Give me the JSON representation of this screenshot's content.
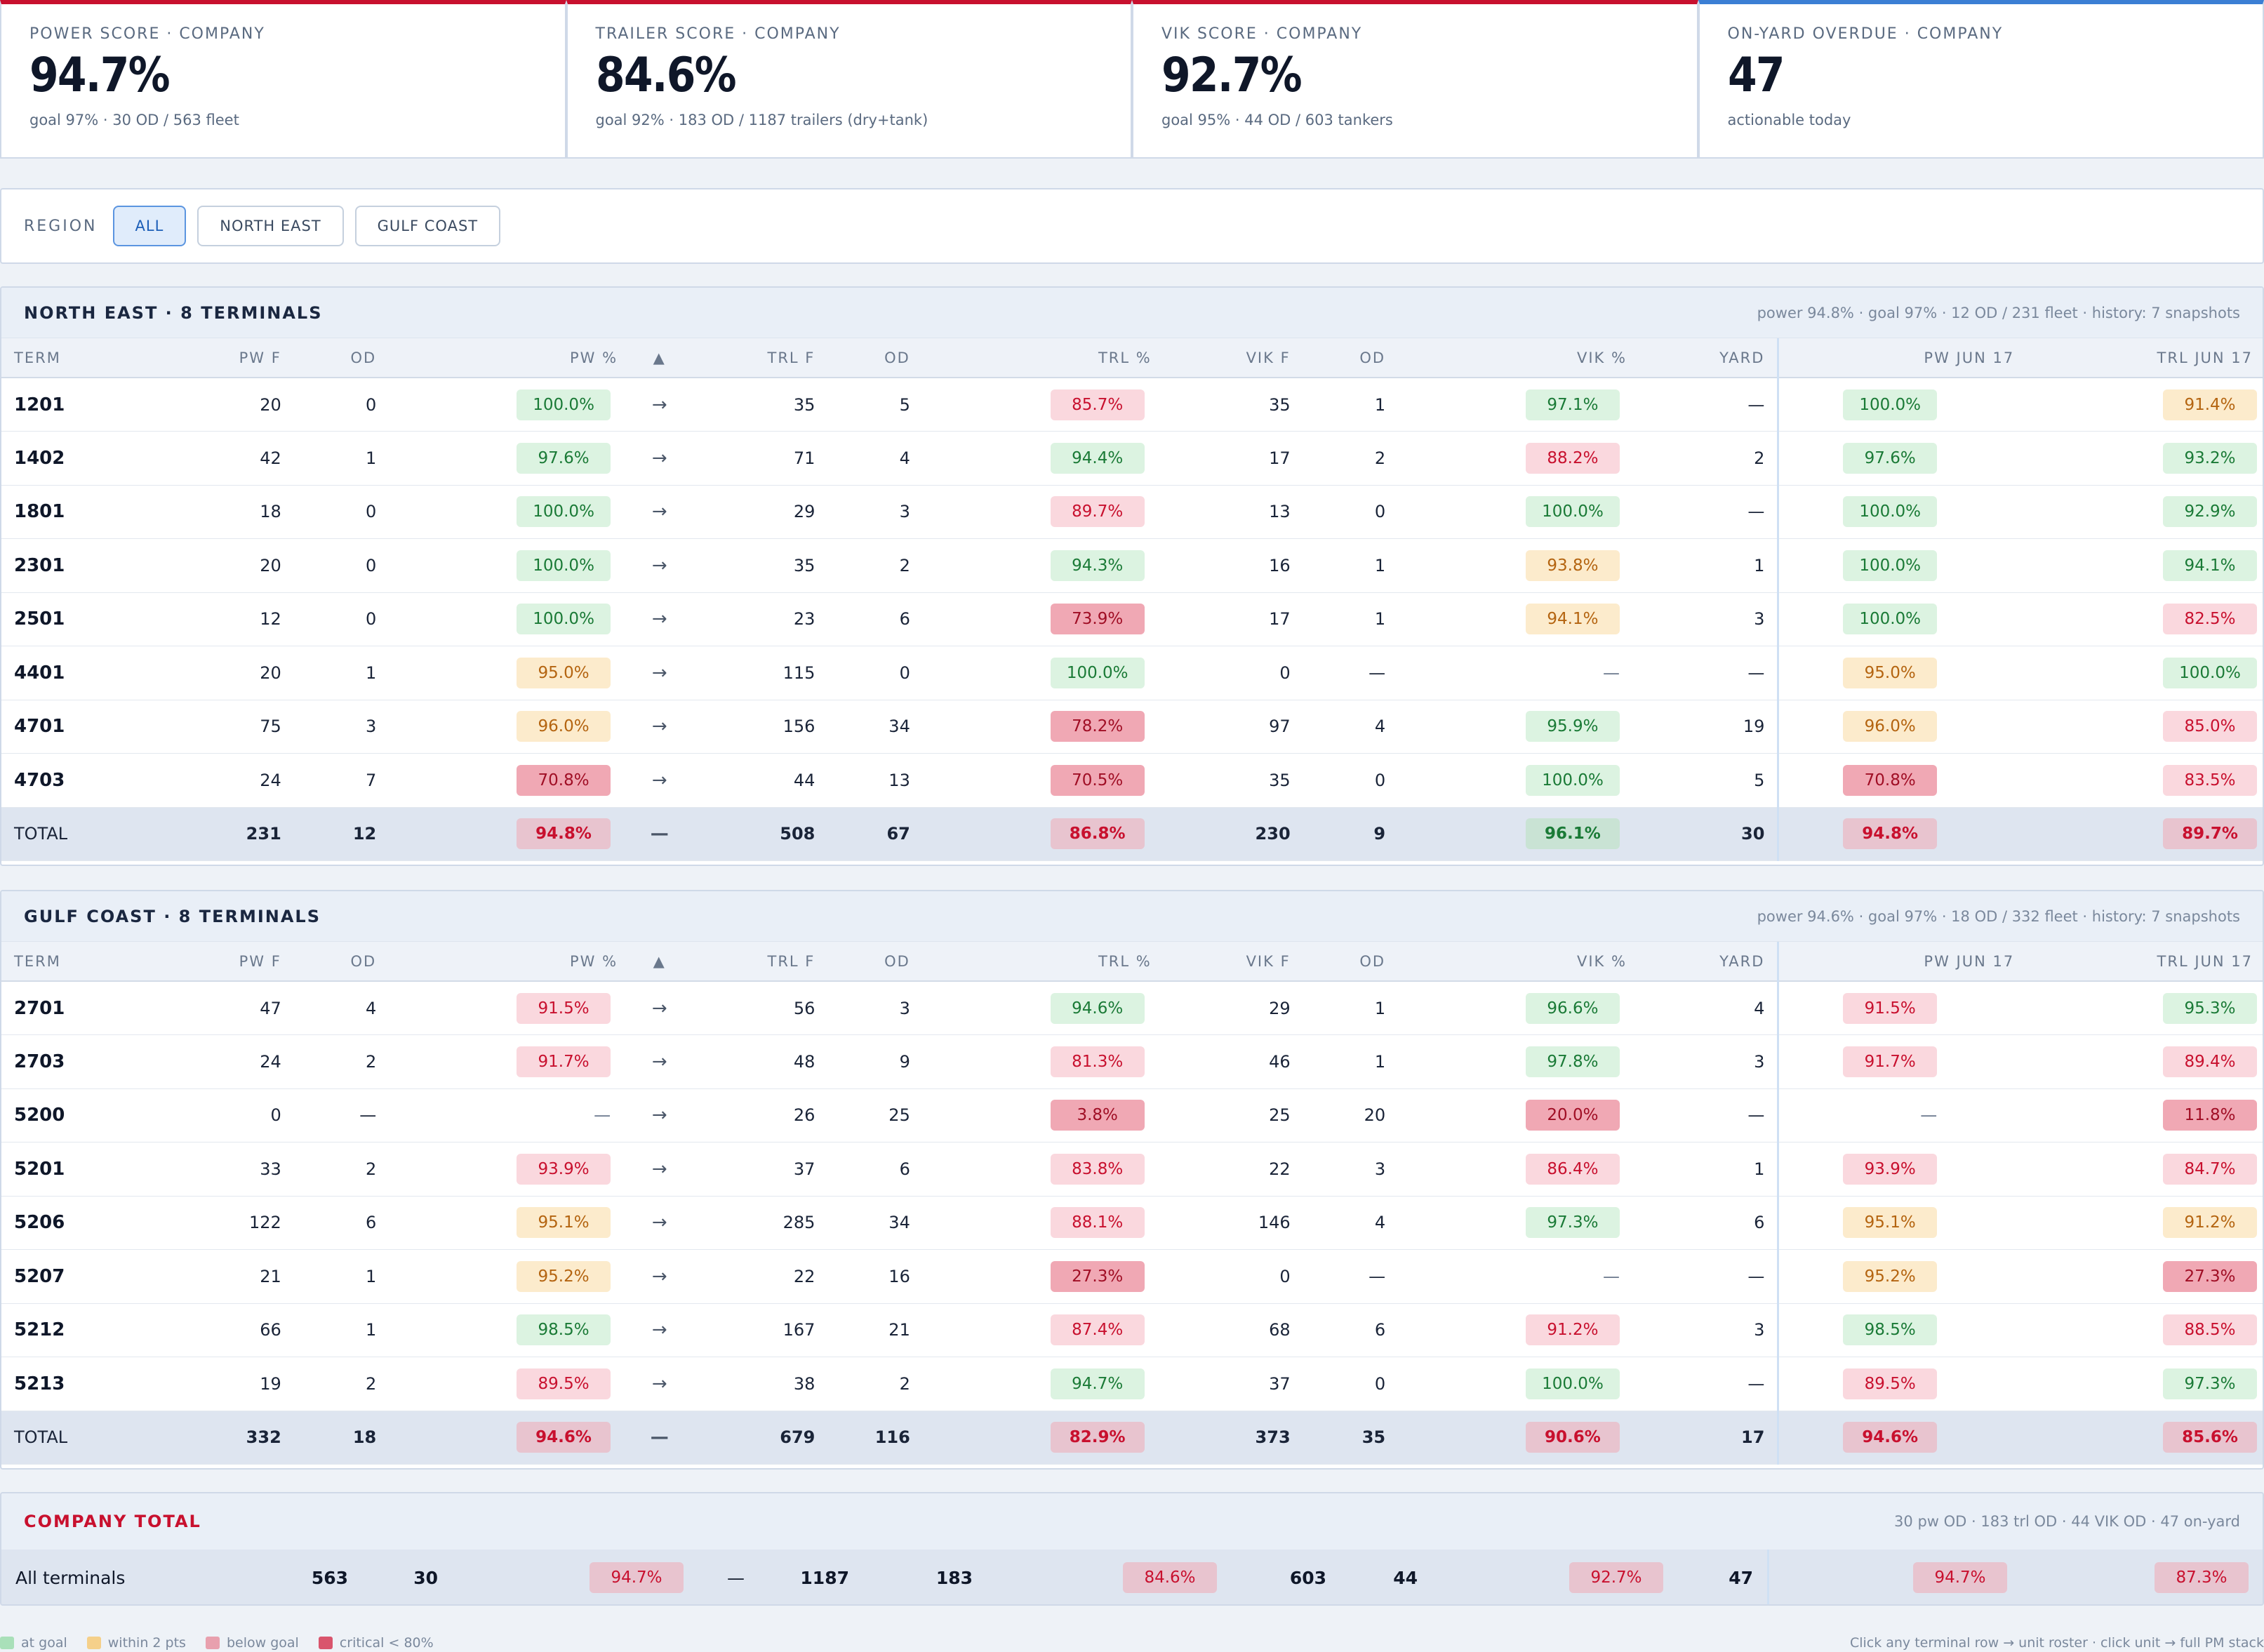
{
  "kpis": [
    {
      "label": "POWER SCORE · COMPANY",
      "value": "94.7%",
      "sub": "goal 97% · 30 OD / 563 fleet",
      "accent": "#c8102e"
    },
    {
      "label": "TRAILER SCORE · COMPANY",
      "value": "84.6%",
      "sub": "goal 92% · 183 OD / 1187 trailers (dry+tank)",
      "accent": "#c8102e"
    },
    {
      "label": "VIK SCORE · COMPANY",
      "value": "92.7%",
      "sub": "goal 95% · 44 OD / 603 tankers",
      "accent": "#c8102e"
    },
    {
      "label": "ON-YARD OVERDUE · COMPANY",
      "value": "47",
      "sub": "actionable today",
      "accent": "#3b7fd4"
    }
  ],
  "filter": {
    "label": "REGION",
    "options": [
      "ALL",
      "NORTH EAST",
      "GULF COAST"
    ],
    "selected": "ALL"
  },
  "columns": [
    "TERM",
    "PW F",
    "OD",
    "PW %",
    "▲",
    "TRL F",
    "OD",
    "TRL %",
    "VIK F",
    "OD",
    "VIK %",
    "YARD",
    "PW JUN 17",
    "TRL JUN 17"
  ],
  "sections": [
    {
      "title": "NORTH EAST · 8 TERMINALS",
      "meta": "power 94.8% · goal 97% · 12 OD / 231 fleet · history: 7 snapshots",
      "rows": [
        {
          "term": "1201",
          "pwf": "20",
          "pwod": "0",
          "pw": "100.0%",
          "pwc": "good",
          "trend": "→",
          "trlf": "35",
          "trlod": "5",
          "trl": "85.7%",
          "trlc": "below",
          "vikf": "35",
          "vikod": "1",
          "vik": "97.1%",
          "vikc": "good",
          "yard": "—",
          "hpw": "100.0%",
          "hpwc": "good",
          "htrl": "91.4%",
          "htrlc": "warn"
        },
        {
          "term": "1402",
          "pwf": "42",
          "pwod": "1",
          "pw": "97.6%",
          "pwc": "good",
          "trend": "→",
          "trlf": "71",
          "trlod": "4",
          "trl": "94.4%",
          "trlc": "good",
          "vikf": "17",
          "vikod": "2",
          "vik": "88.2%",
          "vikc": "below",
          "yard": "2",
          "hpw": "97.6%",
          "hpwc": "good",
          "htrl": "93.2%",
          "htrlc": "good"
        },
        {
          "term": "1801",
          "pwf": "18",
          "pwod": "0",
          "pw": "100.0%",
          "pwc": "good",
          "trend": "→",
          "trlf": "29",
          "trlod": "3",
          "trl": "89.7%",
          "trlc": "below",
          "vikf": "13",
          "vikod": "0",
          "vik": "100.0%",
          "vikc": "good",
          "yard": "—",
          "hpw": "100.0%",
          "hpwc": "good",
          "htrl": "92.9%",
          "htrlc": "good"
        },
        {
          "term": "2301",
          "pwf": "20",
          "pwod": "0",
          "pw": "100.0%",
          "pwc": "good",
          "trend": "→",
          "trlf": "35",
          "trlod": "2",
          "trl": "94.3%",
          "trlc": "good",
          "vikf": "16",
          "vikod": "1",
          "vik": "93.8%",
          "vikc": "warn",
          "yard": "1",
          "hpw": "100.0%",
          "hpwc": "good",
          "htrl": "94.1%",
          "htrlc": "good"
        },
        {
          "term": "2501",
          "pwf": "12",
          "pwod": "0",
          "pw": "100.0%",
          "pwc": "good",
          "trend": "→",
          "trlf": "23",
          "trlod": "6",
          "trl": "73.9%",
          "trlc": "crit",
          "vikf": "17",
          "vikod": "1",
          "vik": "94.1%",
          "vikc": "warn",
          "yard": "3",
          "hpw": "100.0%",
          "hpwc": "good",
          "htrl": "82.5%",
          "htrlc": "below"
        },
        {
          "term": "4401",
          "pwf": "20",
          "pwod": "1",
          "pw": "95.0%",
          "pwc": "warn",
          "trend": "→",
          "trlf": "115",
          "trlod": "0",
          "trl": "100.0%",
          "trlc": "good",
          "vikf": "0",
          "vikod": "—",
          "vik": "—",
          "vikc": "",
          "yard": "—",
          "hpw": "95.0%",
          "hpwc": "warn",
          "htrl": "100.0%",
          "htrlc": "good"
        },
        {
          "term": "4701",
          "pwf": "75",
          "pwod": "3",
          "pw": "96.0%",
          "pwc": "warn",
          "trend": "→",
          "trlf": "156",
          "trlod": "34",
          "trl": "78.2%",
          "trlc": "crit",
          "vikf": "97",
          "vikod": "4",
          "vik": "95.9%",
          "vikc": "good",
          "yard": "19",
          "hpw": "96.0%",
          "hpwc": "warn",
          "htrl": "85.0%",
          "htrlc": "below"
        },
        {
          "term": "4703",
          "pwf": "24",
          "pwod": "7",
          "pw": "70.8%",
          "pwc": "crit",
          "trend": "→",
          "trlf": "44",
          "trlod": "13",
          "trl": "70.5%",
          "trlc": "crit",
          "vikf": "35",
          "vikod": "0",
          "vik": "100.0%",
          "vikc": "good",
          "yard": "5",
          "hpw": "70.8%",
          "hpwc": "crit",
          "htrl": "83.5%",
          "htrlc": "below"
        }
      ],
      "total": {
        "term": "TOTAL",
        "pwf": "231",
        "pwod": "12",
        "pw": "94.8%",
        "pwc": "below",
        "trend": "—",
        "trlf": "508",
        "trlod": "67",
        "trl": "86.8%",
        "trlc": "below",
        "vikf": "230",
        "vikod": "9",
        "vik": "96.1%",
        "vikc": "good",
        "yard": "30",
        "hpw": "94.8%",
        "hpwc": "below",
        "htrl": "89.7%",
        "htrlc": "below"
      }
    },
    {
      "title": "GULF COAST · 8 TERMINALS",
      "meta": "power 94.6% · goal 97% · 18 OD / 332 fleet · history: 7 snapshots",
      "rows": [
        {
          "term": "2701",
          "pwf": "47",
          "pwod": "4",
          "pw": "91.5%",
          "pwc": "below",
          "trend": "→",
          "trlf": "56",
          "trlod": "3",
          "trl": "94.6%",
          "trlc": "good",
          "vikf": "29",
          "vikod": "1",
          "vik": "96.6%",
          "vikc": "good",
          "yard": "4",
          "hpw": "91.5%",
          "hpwc": "below",
          "htrl": "95.3%",
          "htrlc": "good"
        },
        {
          "term": "2703",
          "pwf": "24",
          "pwod": "2",
          "pw": "91.7%",
          "pwc": "below",
          "trend": "→",
          "trlf": "48",
          "trlod": "9",
          "trl": "81.3%",
          "trlc": "below",
          "vikf": "46",
          "vikod": "1",
          "vik": "97.8%",
          "vikc": "good",
          "yard": "3",
          "hpw": "91.7%",
          "hpwc": "below",
          "htrl": "89.4%",
          "htrlc": "below"
        },
        {
          "term": "5200",
          "pwf": "0",
          "pwod": "—",
          "pw": "—",
          "pwc": "",
          "trend": "→",
          "trlf": "26",
          "trlod": "25",
          "trl": "3.8%",
          "trlc": "crit",
          "vikf": "25",
          "vikod": "20",
          "vik": "20.0%",
          "vikc": "crit",
          "yard": "—",
          "hpw": "—",
          "hpwc": "",
          "htrl": "11.8%",
          "htrlc": "crit"
        },
        {
          "term": "5201",
          "pwf": "33",
          "pwod": "2",
          "pw": "93.9%",
          "pwc": "below",
          "trend": "→",
          "trlf": "37",
          "trlod": "6",
          "trl": "83.8%",
          "trlc": "below",
          "vikf": "22",
          "vikod": "3",
          "vik": "86.4%",
          "vikc": "below",
          "yard": "1",
          "hpw": "93.9%",
          "hpwc": "below",
          "htrl": "84.7%",
          "htrlc": "below"
        },
        {
          "term": "5206",
          "pwf": "122",
          "pwod": "6",
          "pw": "95.1%",
          "pwc": "warn",
          "trend": "→",
          "trlf": "285",
          "trlod": "34",
          "trl": "88.1%",
          "trlc": "below",
          "vikf": "146",
          "vikod": "4",
          "vik": "97.3%",
          "vikc": "good",
          "yard": "6",
          "hpw": "95.1%",
          "hpwc": "warn",
          "htrl": "91.2%",
          "htrlc": "warn"
        },
        {
          "term": "5207",
          "pwf": "21",
          "pwod": "1",
          "pw": "95.2%",
          "pwc": "warn",
          "trend": "→",
          "trlf": "22",
          "trlod": "16",
          "trl": "27.3%",
          "trlc": "crit",
          "vikf": "0",
          "vikod": "—",
          "vik": "—",
          "vikc": "",
          "yard": "—",
          "hpw": "95.2%",
          "hpwc": "warn",
          "htrl": "27.3%",
          "htrlc": "crit"
        },
        {
          "term": "5212",
          "pwf": "66",
          "pwod": "1",
          "pw": "98.5%",
          "pwc": "good",
          "trend": "→",
          "trlf": "167",
          "trlod": "21",
          "trl": "87.4%",
          "trlc": "below",
          "vikf": "68",
          "vikod": "6",
          "vik": "91.2%",
          "vikc": "below",
          "yard": "3",
          "hpw": "98.5%",
          "hpwc": "good",
          "htrl": "88.5%",
          "htrlc": "below"
        },
        {
          "term": "5213",
          "pwf": "19",
          "pwod": "2",
          "pw": "89.5%",
          "pwc": "below",
          "trend": "→",
          "trlf": "38",
          "trlod": "2",
          "trl": "94.7%",
          "trlc": "good",
          "vikf": "37",
          "vikod": "0",
          "vik": "100.0%",
          "vikc": "good",
          "yard": "—",
          "hpw": "89.5%",
          "hpwc": "below",
          "htrl": "97.3%",
          "htrlc": "good"
        }
      ],
      "total": {
        "term": "TOTAL",
        "pwf": "332",
        "pwod": "18",
        "pw": "94.6%",
        "pwc": "below",
        "trend": "—",
        "trlf": "679",
        "trlod": "116",
        "trl": "82.9%",
        "trlc": "below",
        "vikf": "373",
        "vikod": "35",
        "vik": "90.6%",
        "vikc": "below",
        "yard": "17",
        "hpw": "94.6%",
        "hpwc": "below",
        "htrl": "85.6%",
        "htrlc": "below"
      }
    }
  ],
  "company": {
    "title": "COMPANY TOTAL",
    "meta": "30 pw OD · 183 trl OD · 44 VIK OD · 47 on-yard",
    "row": {
      "term": "All terminals",
      "pwf": "563",
      "pwod": "30",
      "pw": "94.7%",
      "trend": "—",
      "trlf": "1187",
      "trlod": "183",
      "trl": "84.6%",
      "vikf": "603",
      "vikod": "44",
      "vik": "92.7%",
      "yard": "47",
      "hpw": "94.7%",
      "htrl": "87.3%"
    }
  },
  "legend": {
    "items": [
      {
        "label": "at goal",
        "color": "#a9e0b9"
      },
      {
        "label": "within 2 pts",
        "color": "#f5d08a"
      },
      {
        "label": "below goal",
        "color": "#e8a0ae"
      },
      {
        "label": "critical < 80%",
        "color": "#d9556d"
      }
    ],
    "note": "Click any terminal row → unit roster · click unit → full PM stack"
  }
}
